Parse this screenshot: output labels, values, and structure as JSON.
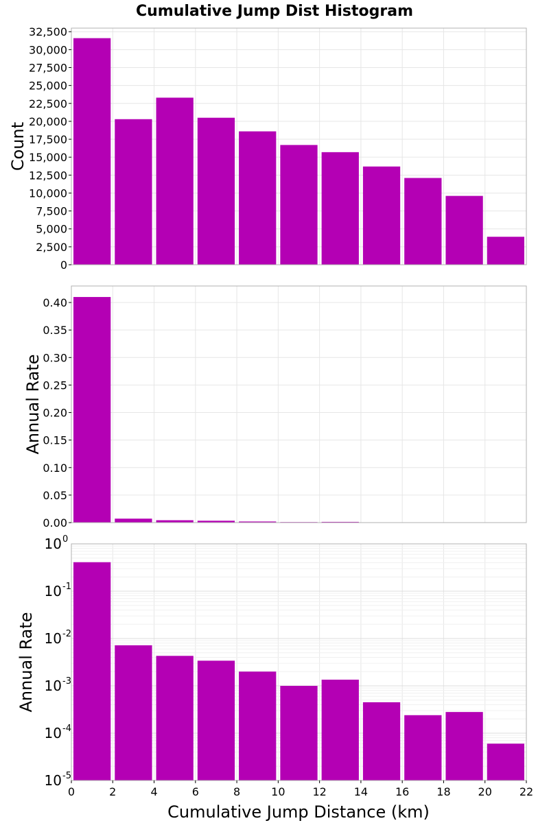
{
  "figure": {
    "title": "Cumulative Jump Dist Histogram",
    "xlabel": "Cumulative Jump Distance (km)"
  },
  "chart_data": [
    {
      "type": "bar",
      "ylabel": "Count",
      "yscale": "linear",
      "ylim": [
        0,
        33000
      ],
      "yticks": [
        0,
        2500,
        5000,
        7500,
        10000,
        12500,
        15000,
        17500,
        20000,
        22500,
        25000,
        27500,
        30000,
        32500
      ],
      "yticklabels": [
        "0",
        "2,500",
        "5,000",
        "7,500",
        "10,000",
        "12,500",
        "15,000",
        "17,500",
        "20,000",
        "22,500",
        "25,000",
        "27,500",
        "30,000",
        "32,500"
      ],
      "xlim": [
        0,
        22
      ],
      "bin_width": 2,
      "x": [
        0,
        2,
        4,
        6,
        8,
        10,
        12,
        14,
        16,
        18,
        20
      ],
      "values": [
        31600,
        20300,
        23300,
        20500,
        18600,
        16700,
        15700,
        13700,
        12100,
        9600,
        3900
      ],
      "color": "#b400b4",
      "grid": true
    },
    {
      "type": "bar",
      "ylabel": "Annual Rate",
      "yscale": "linear",
      "ylim": [
        0,
        0.43
      ],
      "yticks": [
        0,
        0.05,
        0.1,
        0.15,
        0.2,
        0.25,
        0.3,
        0.35,
        0.4
      ],
      "yticklabels": [
        "0.00",
        "0.05",
        "0.10",
        "0.15",
        "0.20",
        "0.25",
        "0.30",
        "0.35",
        "0.40"
      ],
      "xlim": [
        0,
        22
      ],
      "bin_width": 2,
      "x": [
        0,
        2,
        4,
        6,
        8,
        10,
        12,
        14,
        16,
        18,
        20
      ],
      "values": [
        0.41,
        0.0072,
        0.0043,
        0.0034,
        0.002,
        0.001,
        0.00135,
        0.00045,
        0.00024,
        0.00028,
        6e-05
      ],
      "color": "#b400b4",
      "grid": true
    },
    {
      "type": "bar",
      "ylabel": "Annual Rate",
      "yscale": "log",
      "ylim": [
        1e-05,
        1
      ],
      "yticks": [
        1,
        0.1,
        0.01,
        0.001,
        0.0001,
        1e-05
      ],
      "yticklabels": [
        {
          "base": "10",
          "exp": "0"
        },
        {
          "base": "10",
          "exp": "-1"
        },
        {
          "base": "10",
          "exp": "-2"
        },
        {
          "base": "10",
          "exp": "-3"
        },
        {
          "base": "10",
          "exp": "-4"
        },
        {
          "base": "10",
          "exp": "-5"
        }
      ],
      "xlim": [
        0,
        22
      ],
      "xticks": [
        0,
        2,
        4,
        6,
        8,
        10,
        12,
        14,
        16,
        18,
        20,
        22
      ],
      "xticklabels": [
        "0",
        "2",
        "4",
        "6",
        "8",
        "10",
        "12",
        "14",
        "16",
        "18",
        "20",
        "22"
      ],
      "bin_width": 2,
      "x": [
        0,
        2,
        4,
        6,
        8,
        10,
        12,
        14,
        16,
        18,
        20
      ],
      "values": [
        0.41,
        0.0072,
        0.0043,
        0.0034,
        0.002,
        0.001,
        0.00135,
        0.00045,
        0.00024,
        0.00028,
        6e-05
      ],
      "color": "#b400b4",
      "grid": true
    }
  ]
}
